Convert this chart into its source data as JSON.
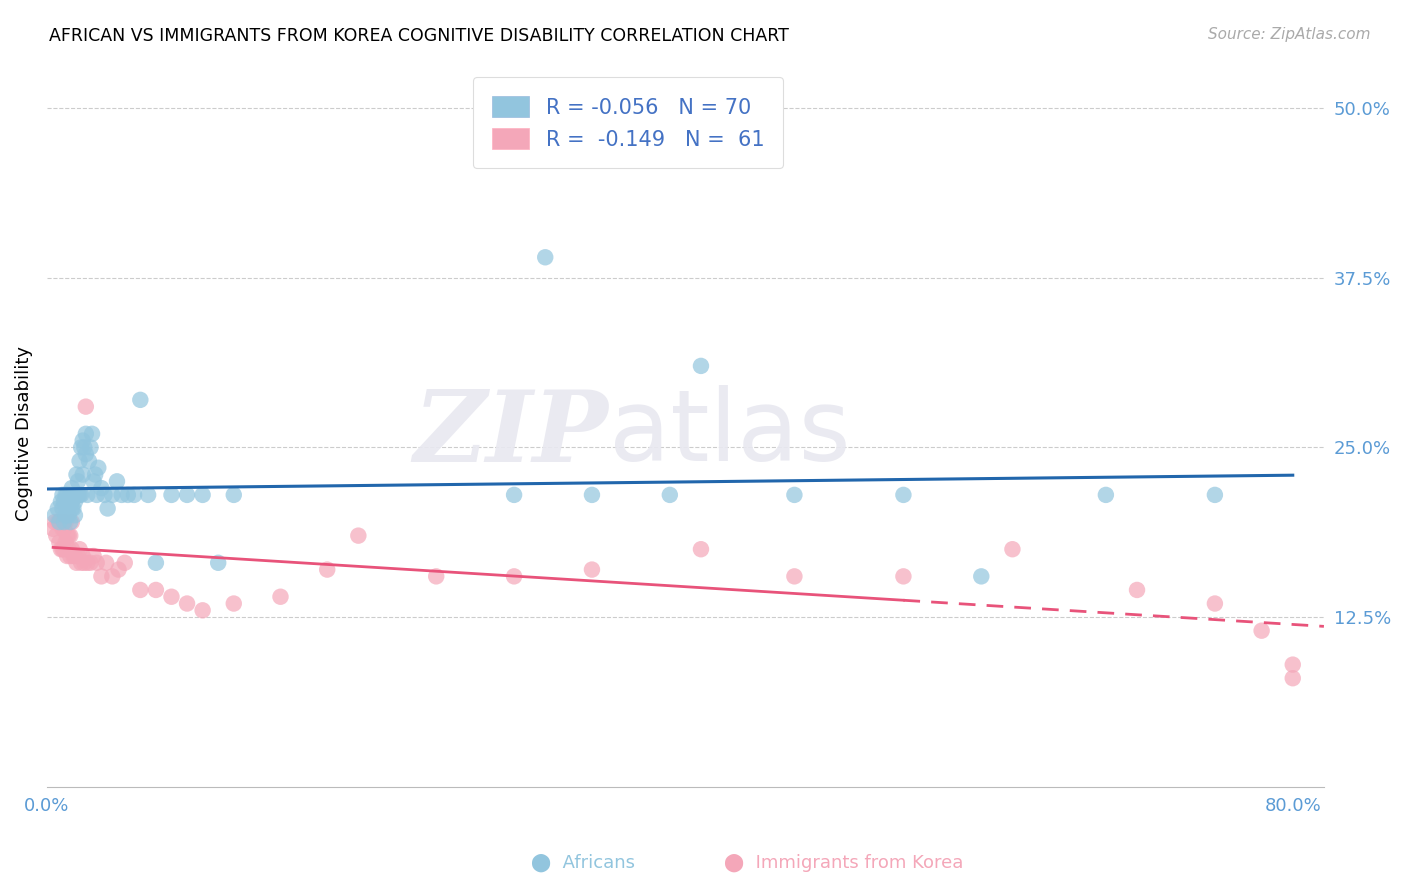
{
  "title": "AFRICAN VS IMMIGRANTS FROM KOREA COGNITIVE DISABILITY CORRELATION CHART",
  "source": "Source: ZipAtlas.com",
  "ylabel": "Cognitive Disability",
  "xlim": [
    0.0,
    0.82
  ],
  "ylim": [
    0.0,
    0.52
  ],
  "blue_color": "#92C5DE",
  "pink_color": "#F4A7B9",
  "line_blue_color": "#2166AC",
  "line_pink_color": "#E8537A",
  "tick_color": "#5B9BD5",
  "legend_text_color": "#4472C4",
  "blue_x": [
    0.005,
    0.007,
    0.008,
    0.009,
    0.01,
    0.01,
    0.011,
    0.011,
    0.012,
    0.012,
    0.013,
    0.013,
    0.014,
    0.014,
    0.015,
    0.015,
    0.016,
    0.016,
    0.016,
    0.017,
    0.017,
    0.018,
    0.018,
    0.019,
    0.019,
    0.02,
    0.02,
    0.021,
    0.021,
    0.022,
    0.022,
    0.023,
    0.023,
    0.024,
    0.025,
    0.025,
    0.026,
    0.027,
    0.028,
    0.029,
    0.03,
    0.031,
    0.032,
    0.033,
    0.035,
    0.037,
    0.039,
    0.042,
    0.045,
    0.048,
    0.052,
    0.056,
    0.06,
    0.065,
    0.07,
    0.08,
    0.09,
    0.1,
    0.11,
    0.12,
    0.3,
    0.32,
    0.35,
    0.4,
    0.42,
    0.48,
    0.55,
    0.6,
    0.68,
    0.75
  ],
  "blue_y": [
    0.2,
    0.205,
    0.195,
    0.21,
    0.205,
    0.215,
    0.195,
    0.21,
    0.2,
    0.215,
    0.2,
    0.215,
    0.2,
    0.21,
    0.195,
    0.215,
    0.205,
    0.21,
    0.22,
    0.205,
    0.215,
    0.2,
    0.21,
    0.215,
    0.23,
    0.215,
    0.225,
    0.215,
    0.24,
    0.215,
    0.25,
    0.23,
    0.255,
    0.25,
    0.245,
    0.26,
    0.215,
    0.24,
    0.25,
    0.26,
    0.225,
    0.23,
    0.215,
    0.235,
    0.22,
    0.215,
    0.205,
    0.215,
    0.225,
    0.215,
    0.215,
    0.215,
    0.285,
    0.215,
    0.165,
    0.215,
    0.215,
    0.215,
    0.165,
    0.215,
    0.215,
    0.39,
    0.215,
    0.215,
    0.31,
    0.215,
    0.215,
    0.155,
    0.215,
    0.215
  ],
  "pink_x": [
    0.004,
    0.005,
    0.006,
    0.007,
    0.008,
    0.008,
    0.009,
    0.009,
    0.01,
    0.01,
    0.011,
    0.011,
    0.012,
    0.012,
    0.013,
    0.013,
    0.014,
    0.014,
    0.015,
    0.015,
    0.016,
    0.016,
    0.017,
    0.018,
    0.019,
    0.02,
    0.021,
    0.022,
    0.023,
    0.024,
    0.025,
    0.026,
    0.028,
    0.03,
    0.032,
    0.035,
    0.038,
    0.042,
    0.046,
    0.05,
    0.06,
    0.07,
    0.08,
    0.09,
    0.1,
    0.12,
    0.15,
    0.18,
    0.2,
    0.25,
    0.3,
    0.35,
    0.42,
    0.48,
    0.55,
    0.62,
    0.7,
    0.75,
    0.78,
    0.8,
    0.8
  ],
  "pink_y": [
    0.19,
    0.195,
    0.185,
    0.195,
    0.18,
    0.195,
    0.175,
    0.195,
    0.175,
    0.19,
    0.175,
    0.19,
    0.18,
    0.195,
    0.17,
    0.185,
    0.175,
    0.185,
    0.17,
    0.185,
    0.175,
    0.195,
    0.17,
    0.17,
    0.165,
    0.17,
    0.175,
    0.165,
    0.17,
    0.165,
    0.28,
    0.165,
    0.165,
    0.17,
    0.165,
    0.155,
    0.165,
    0.155,
    0.16,
    0.165,
    0.145,
    0.145,
    0.14,
    0.135,
    0.13,
    0.135,
    0.14,
    0.16,
    0.185,
    0.155,
    0.155,
    0.16,
    0.175,
    0.155,
    0.155,
    0.175,
    0.145,
    0.135,
    0.115,
    0.09,
    0.08
  ]
}
